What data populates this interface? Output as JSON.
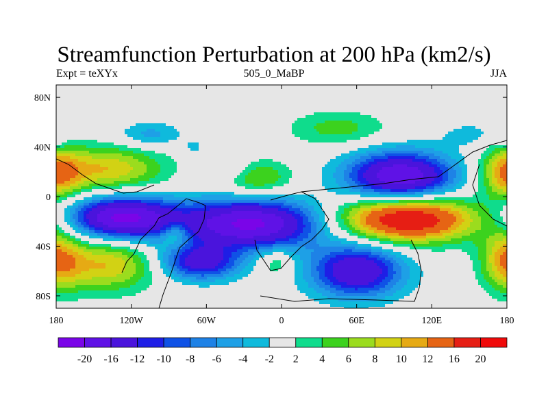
{
  "chart_data": {
    "type": "heatmap",
    "title": "Streamfunction Perturbation at 200 hPa (km2/s)",
    "left_label": "Expt = teXYx",
    "center_label": "505_0_MaBP",
    "right_label": "JJA",
    "xlim": [
      -180,
      180
    ],
    "ylim": [
      -90,
      90
    ],
    "x_ticks": [
      {
        "value": -180,
        "label": "180"
      },
      {
        "value": -120,
        "label": "120W"
      },
      {
        "value": -60,
        "label": "60W"
      },
      {
        "value": 0,
        "label": "0"
      },
      {
        "value": 60,
        "label": "60E"
      },
      {
        "value": 120,
        "label": "120E"
      },
      {
        "value": 180,
        "label": "180"
      }
    ],
    "y_ticks": [
      {
        "value": 80,
        "label": "80N"
      },
      {
        "value": 40,
        "label": "40N"
      },
      {
        "value": 0,
        "label": "0"
      },
      {
        "value": -40,
        "label": "40S"
      },
      {
        "value": -80,
        "label": "80S"
      }
    ],
    "colorbar": {
      "labels": [
        "-20",
        "-16",
        "-12",
        "-10",
        "-8",
        "-6",
        "-4",
        "-2",
        "2",
        "4",
        "6",
        "8",
        "10",
        "12",
        "16",
        "20"
      ],
      "colors": [
        "#7a05e8",
        "#5f12e6",
        "#4a14dc",
        "#1e1ee6",
        "#0f52e6",
        "#1e82e6",
        "#1ea0e6",
        "#0fbadc",
        "#e6e6e6",
        "#0fdc8c",
        "#3cd21e",
        "#9bdc1e",
        "#d2d214",
        "#e6aa14",
        "#e66414",
        "#e61e14",
        "#f00a0a"
      ]
    },
    "features": [
      {
        "lon": 100,
        "lat": -18,
        "value": 21,
        "sx": 38,
        "sy": 13
      },
      {
        "lon": 95,
        "lat": 16,
        "value": -20,
        "sx": 30,
        "sy": 14
      },
      {
        "lon": -127,
        "lat": -17,
        "value": -21,
        "sx": 30,
        "sy": 12
      },
      {
        "lon": -25,
        "lat": -22,
        "value": -21,
        "sx": 40,
        "sy": 14
      },
      {
        "lon": 60,
        "lat": -60,
        "value": -16,
        "sx": 26,
        "sy": 15
      },
      {
        "lon": -65,
        "lat": -53,
        "value": -14,
        "sx": 22,
        "sy": 10
      },
      {
        "lon": -140,
        "lat": -55,
        "value": 10,
        "sx": 28,
        "sy": 15
      },
      {
        "lon": 180,
        "lat": -50,
        "value": 10,
        "sx": 14,
        "sy": 18
      },
      {
        "lon": -140,
        "lat": 22,
        "value": 10,
        "sx": 32,
        "sy": 13
      },
      {
        "lon": 180,
        "lat": 18,
        "value": 10,
        "sx": 14,
        "sy": 15
      },
      {
        "lon": -20,
        "lat": 15,
        "value": 7,
        "sx": 20,
        "sy": 10
      },
      {
        "lon": 45,
        "lat": 55,
        "value": 5,
        "sx": 28,
        "sy": 10
      },
      {
        "lon": -5,
        "lat": -53,
        "value": 5,
        "sx": 10,
        "sy": 8
      },
      {
        "lon": -85,
        "lat": -30,
        "value": 6,
        "sx": 8,
        "sy": 7
      },
      {
        "lon": -105,
        "lat": 50,
        "value": -5,
        "sx": 18,
        "sy": 7
      },
      {
        "lon": -40,
        "lat": 22,
        "value": -4,
        "sx": 12,
        "sy": 7
      },
      {
        "lon": 150,
        "lat": 50,
        "value": -3,
        "sx": 16,
        "sy": 7
      },
      {
        "lon": -70,
        "lat": 40,
        "value": -3,
        "sx": 5,
        "sy": 4
      },
      {
        "lon": -180,
        "lat": 45,
        "value": -3,
        "sx": 5,
        "sy": 5
      },
      {
        "lon": 160,
        "lat": -12,
        "value": 0,
        "sx": 10,
        "sy": 20
      }
    ]
  }
}
